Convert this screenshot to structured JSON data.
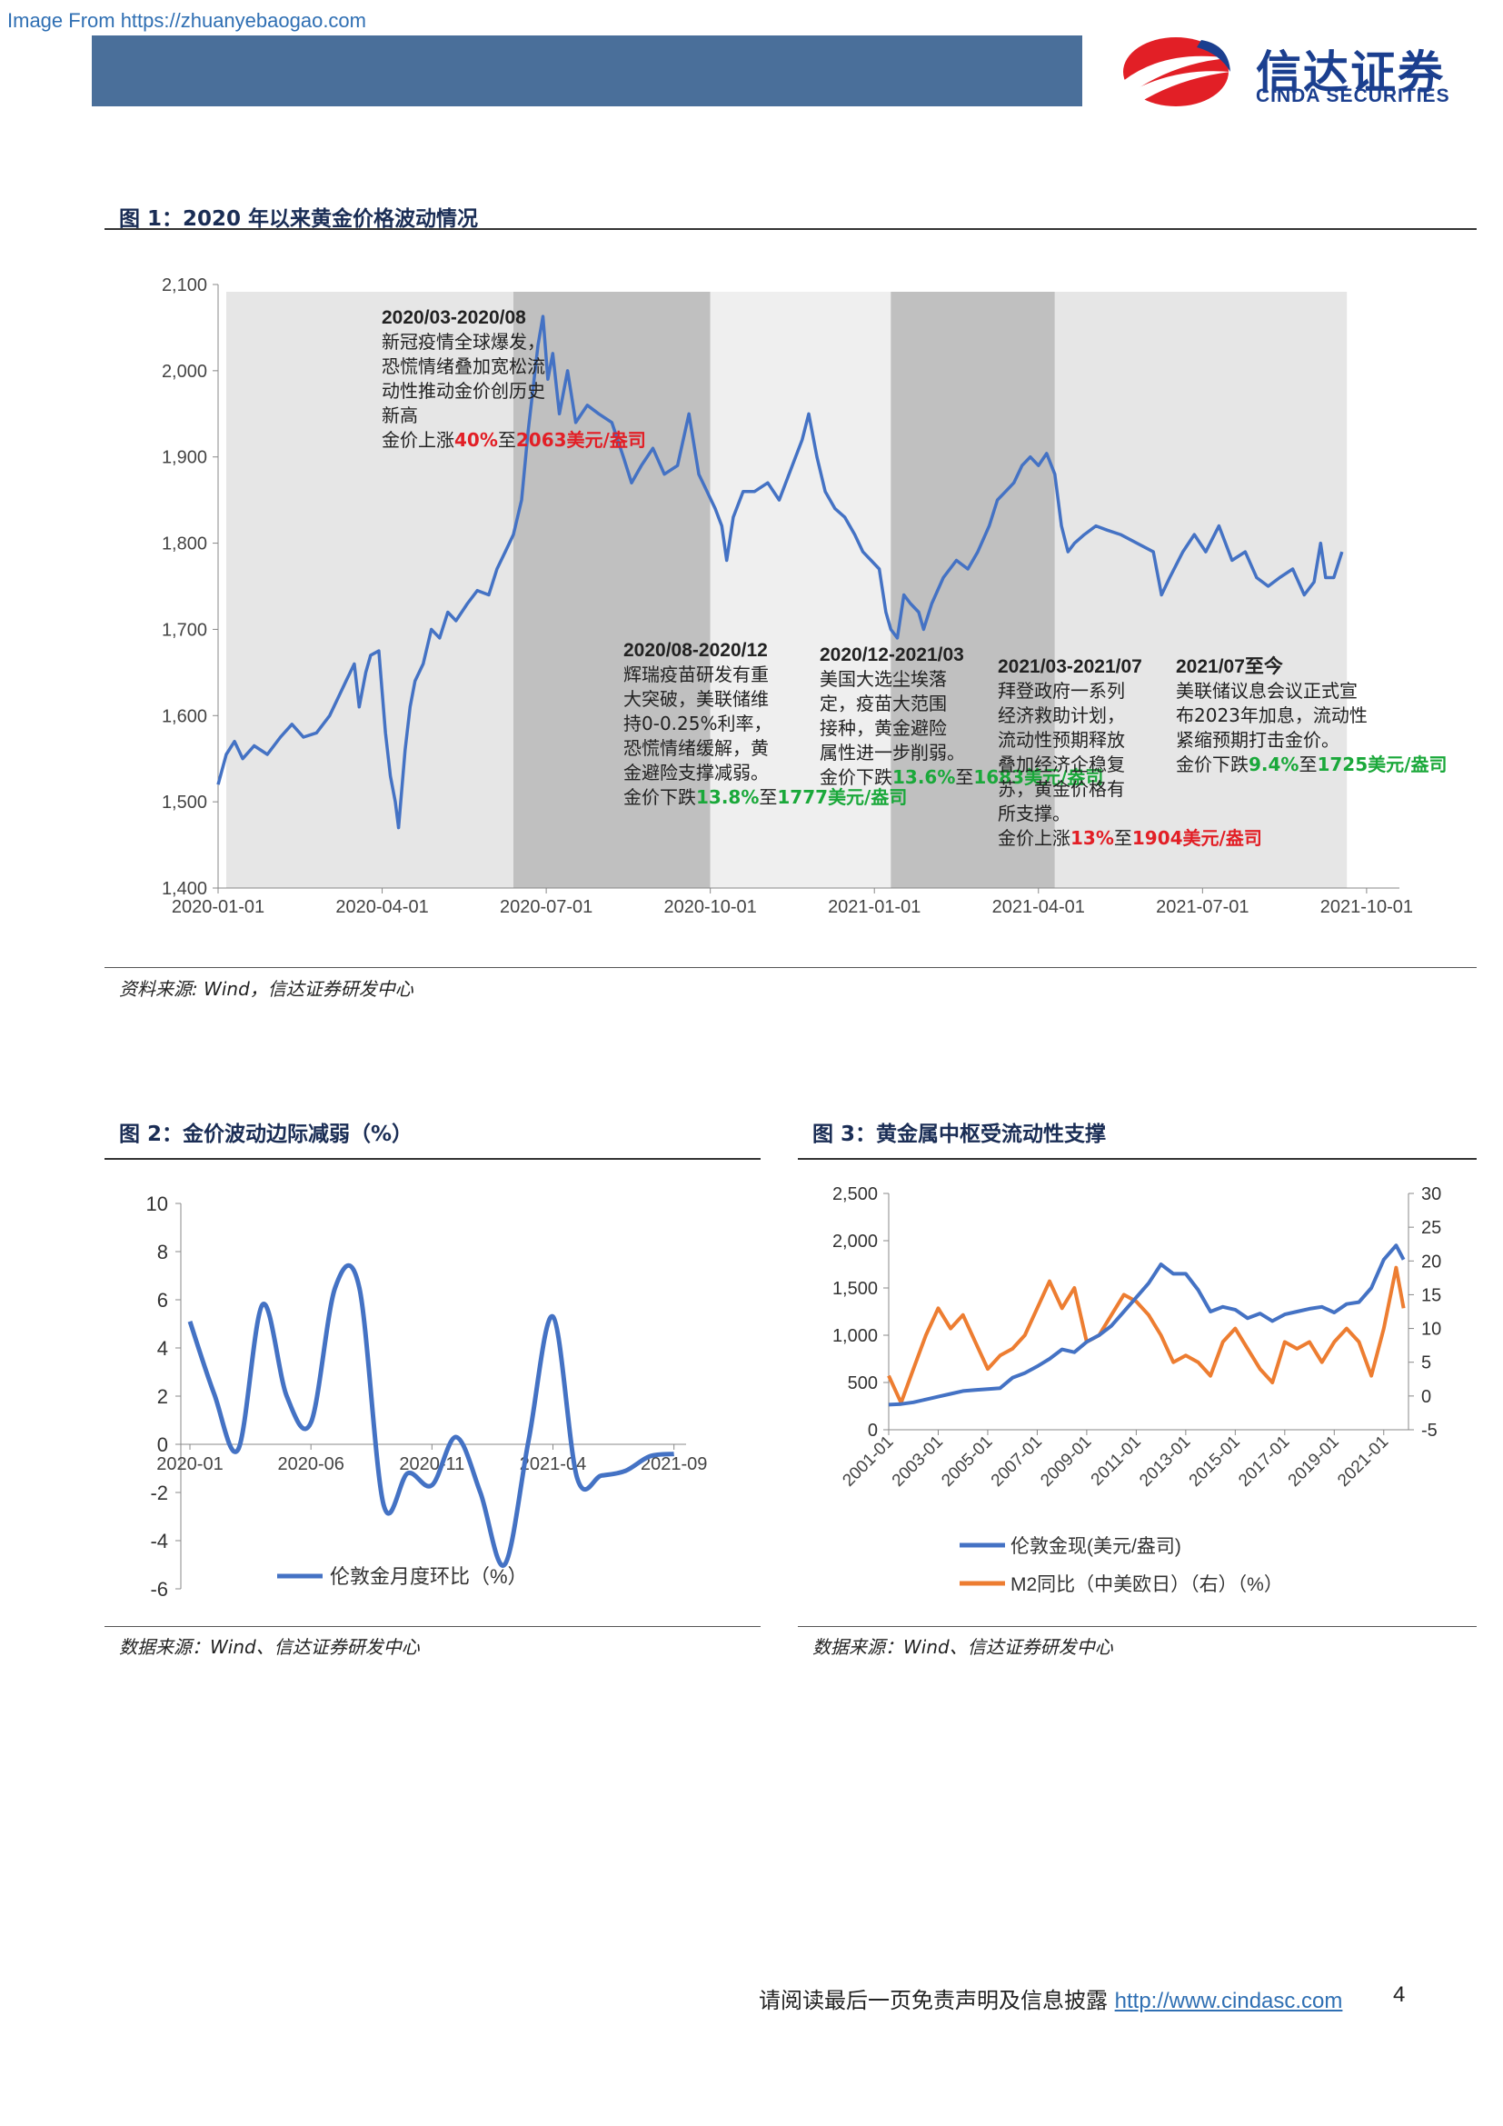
{
  "watermark": "Image From https://zhuanyebaogao.com",
  "logo": {
    "cn": "信达证券",
    "en": "CINDA SECURITIES",
    "colors": {
      "red": "#e21f26",
      "blue": "#1b3f8f"
    }
  },
  "fig1": {
    "title": "图 1：2020 年以来黄金价格波动情况",
    "source": "资料来源: Wind，信达证券研发中心",
    "annotations": [
      {
        "head": "2020/03-2020/08",
        "lines": [
          "新冠疫情全球爆发，",
          "恐慌情绪叠加宽松流",
          "动性推动金价创历史",
          "新高"
        ],
        "pre": "金价上涨",
        "pct": "40%",
        "mid": "至",
        "price": "2063",
        "unit": "美元/盎司"
      },
      {
        "head": "2020/08-2020/12",
        "lines": [
          "辉瑞疫苗研发有重",
          "大突破，美联储维",
          "持0-0.25%利率，",
          "恐慌情绪缓解，黄",
          "金避险支撑减弱。"
        ],
        "pre": "金价下跌",
        "pct": "13.8%",
        "mid": "至",
        "price": "1777",
        "unit": "美元/盎司"
      },
      {
        "head": "2020/12-2021/03",
        "lines": [
          "美国大选尘埃落",
          "定，疫苗大范围",
          "接种，黄金避险",
          "属性进一步削弱。"
        ],
        "pre": "金价下跌",
        "pct": "13.6%",
        "mid": "至",
        "price": "1683",
        "unit": "美元/盎司"
      },
      {
        "head": "2021/03-2021/07",
        "lines": [
          "拜登政府一系列",
          "经济救助计划，",
          "流动性预期释放",
          "叠加经济企稳复",
          "苏，黄金价格有",
          "所支撑。"
        ],
        "pre": "金价上涨",
        "pct": "13%",
        "mid": "至",
        "price": "1904",
        "unit": "美元/盎司"
      },
      {
        "head": "2021/07至今",
        "lines": [
          "美联储议息会议正式宣",
          "布2023年加息，流动性",
          "紧缩预期打击金价。"
        ],
        "pre": "金价下跌",
        "pct": "9.4%",
        "mid": "至",
        "price": "1725",
        "unit": "美元/盎司"
      }
    ]
  },
  "fig2": {
    "title": "图 2：金价波动边际减弱（%）",
    "source": "数据来源：Wind、信达证券研发中心"
  },
  "fig3": {
    "title": "图 3：黄金属中枢受流动性支撑",
    "source": "数据来源：Wind、信达证券研发中心"
  },
  "footer": {
    "text": "请阅读最后一页免责声明及信息披露",
    "link": "http://www.cindasc.com",
    "page": "4"
  },
  "chart_data": [
    {
      "id": "fig1",
      "type": "line",
      "ylim": [
        1400,
        2100
      ],
      "yticks": [
        "1,400",
        "1,500",
        "1,600",
        "1,700",
        "1,800",
        "1,900",
        "2,000",
        "2,100"
      ],
      "xticks": [
        "2020-01-01",
        "2020-04-01",
        "2020-07-01",
        "2020-10-01",
        "2021-01-01",
        "2021-04-01",
        "2021-07-01",
        "2021-10-01"
      ],
      "color": "#4472c4",
      "shaded_periods": [
        {
          "from": 0.05,
          "to": 1.8,
          "color": "#e6e6e6"
        },
        {
          "from": 1.8,
          "to": 3.0,
          "color": "#c0c0c0"
        },
        {
          "from": 3.0,
          "to": 4.1,
          "color": "#efefef"
        },
        {
          "from": 4.1,
          "to": 5.1,
          "color": "#c0c0c0"
        },
        {
          "from": 5.1,
          "to": 6.88,
          "color": "#e6e6e6"
        }
      ],
      "series": [
        {
          "values": [
            [
              0,
              1520
            ],
            [
              0.05,
              1555
            ],
            [
              0.1,
              1570
            ],
            [
              0.15,
              1550
            ],
            [
              0.22,
              1565
            ],
            [
              0.3,
              1555
            ],
            [
              0.38,
              1575
            ],
            [
              0.45,
              1590
            ],
            [
              0.52,
              1575
            ],
            [
              0.6,
              1580
            ],
            [
              0.68,
              1600
            ],
            [
              0.78,
              1640
            ],
            [
              0.83,
              1660
            ],
            [
              0.86,
              1610
            ],
            [
              0.9,
              1650
            ],
            [
              0.93,
              1670
            ],
            [
              0.98,
              1675
            ],
            [
              1.02,
              1580
            ],
            [
              1.05,
              1530
            ],
            [
              1.08,
              1500
            ],
            [
              1.1,
              1470
            ],
            [
              1.14,
              1560
            ],
            [
              1.17,
              1610
            ],
            [
              1.2,
              1640
            ],
            [
              1.25,
              1660
            ],
            [
              1.3,
              1700
            ],
            [
              1.35,
              1690
            ],
            [
              1.4,
              1720
            ],
            [
              1.45,
              1710
            ],
            [
              1.52,
              1730
            ],
            [
              1.58,
              1745
            ],
            [
              1.65,
              1740
            ],
            [
              1.7,
              1770
            ],
            [
              1.75,
              1790
            ],
            [
              1.8,
              1810
            ],
            [
              1.85,
              1850
            ],
            [
              1.89,
              1930
            ],
            [
              1.92,
              1980
            ],
            [
              1.95,
              2030
            ],
            [
              1.98,
              2063
            ],
            [
              2.01,
              1990
            ],
            [
              2.04,
              2020
            ],
            [
              2.08,
              1950
            ],
            [
              2.13,
              2000
            ],
            [
              2.18,
              1940
            ],
            [
              2.25,
              1960
            ],
            [
              2.32,
              1950
            ],
            [
              2.4,
              1940
            ],
            [
              2.47,
              1900
            ],
            [
              2.52,
              1870
            ],
            [
              2.58,
              1890
            ],
            [
              2.65,
              1910
            ],
            [
              2.72,
              1880
            ],
            [
              2.8,
              1890
            ],
            [
              2.87,
              1950
            ],
            [
              2.93,
              1880
            ],
            [
              2.98,
              1860
            ],
            [
              3.03,
              1840
            ],
            [
              3.07,
              1820
            ],
            [
              3.1,
              1780
            ],
            [
              3.14,
              1830
            ],
            [
              3.2,
              1860
            ],
            [
              3.27,
              1860
            ],
            [
              3.35,
              1870
            ],
            [
              3.42,
              1850
            ],
            [
              3.5,
              1890
            ],
            [
              3.56,
              1920
            ],
            [
              3.6,
              1950
            ],
            [
              3.65,
              1900
            ],
            [
              3.7,
              1860
            ],
            [
              3.76,
              1840
            ],
            [
              3.82,
              1830
            ],
            [
              3.88,
              1810
            ],
            [
              3.93,
              1790
            ],
            [
              3.98,
              1780
            ],
            [
              4.03,
              1770
            ],
            [
              4.07,
              1720
            ],
            [
              4.1,
              1700
            ],
            [
              4.14,
              1690
            ],
            [
              4.18,
              1740
            ],
            [
              4.22,
              1730
            ],
            [
              4.27,
              1720
            ],
            [
              4.3,
              1700
            ],
            [
              4.35,
              1730
            ],
            [
              4.42,
              1760
            ],
            [
              4.5,
              1780
            ],
            [
              4.57,
              1770
            ],
            [
              4.63,
              1790
            ],
            [
              4.7,
              1820
            ],
            [
              4.75,
              1850
            ],
            [
              4.8,
              1860
            ],
            [
              4.85,
              1870
            ],
            [
              4.9,
              1890
            ],
            [
              4.95,
              1900
            ],
            [
              5.0,
              1890
            ],
            [
              5.05,
              1904
            ],
            [
              5.1,
              1880
            ],
            [
              5.14,
              1820
            ],
            [
              5.18,
              1790
            ],
            [
              5.22,
              1800
            ],
            [
              5.28,
              1810
            ],
            [
              5.35,
              1820
            ],
            [
              5.42,
              1815
            ],
            [
              5.5,
              1810
            ],
            [
              5.6,
              1800
            ],
            [
              5.7,
              1790
            ],
            [
              5.75,
              1740
            ],
            [
              5.8,
              1760
            ],
            [
              5.88,
              1790
            ],
            [
              5.95,
              1810
            ],
            [
              6.02,
              1790
            ],
            [
              6.1,
              1820
            ],
            [
              6.18,
              1780
            ],
            [
              6.26,
              1790
            ],
            [
              6.33,
              1760
            ],
            [
              6.4,
              1750
            ],
            [
              6.47,
              1760
            ],
            [
              6.55,
              1770
            ],
            [
              6.62,
              1740
            ],
            [
              6.68,
              1755
            ],
            [
              6.72,
              1800
            ],
            [
              6.75,
              1760
            ],
            [
              6.8,
              1760
            ],
            [
              6.85,
              1790
            ]
          ]
        }
      ]
    },
    {
      "id": "fig2",
      "type": "line",
      "ylim": [
        -6,
        10
      ],
      "yticks": [
        "-6",
        "-4",
        "-2",
        "0",
        "2",
        "4",
        "6",
        "8",
        "10"
      ],
      "xticks": [
        "2020-01",
        "2020-06",
        "2020-11",
        "2021-04",
        "2021-09"
      ],
      "series": [
        {
          "name": "伦敦金月度环比（%）",
          "color": "#4472c4",
          "x": [
            0,
            1,
            2,
            3,
            4,
            5,
            6,
            7,
            8,
            9,
            10,
            11,
            12,
            13,
            14,
            15,
            16,
            17,
            18,
            19,
            20
          ],
          "values": [
            5.1,
            2.1,
            -0.2,
            5.8,
            2.0,
            0.9,
            6.5,
            6.5,
            -2.5,
            -1.2,
            -1.7,
            0.3,
            -2.0,
            -5.0,
            0.2,
            5.3,
            -1.4,
            -1.3,
            -1.1,
            -0.5,
            -0.4
          ]
        }
      ]
    },
    {
      "id": "fig3",
      "type": "line",
      "ylim": [
        0,
        2500
      ],
      "yticks": [
        "0",
        "500",
        "1,000",
        "1,500",
        "2,000",
        "2,500"
      ],
      "y2lim": [
        -5,
        30
      ],
      "y2ticks": [
        "-5",
        "0",
        "5",
        "10",
        "15",
        "20",
        "25",
        "30"
      ],
      "xticks": [
        "2001-01",
        "2003-01",
        "2005-01",
        "2007-01",
        "2009-01",
        "2011-01",
        "2013-01",
        "2015-01",
        "2017-01",
        "2019-01",
        "2021-01"
      ],
      "series": [
        {
          "name": "伦敦金现(美元/盎司)",
          "color": "#4472c4",
          "axis": "left",
          "x": [
            0,
            0.5,
            1,
            1.5,
            2,
            2.5,
            3,
            3.5,
            4,
            4.5,
            5,
            5.5,
            6,
            6.5,
            7,
            7.5,
            8,
            8.5,
            9,
            9.5,
            10,
            10.5,
            11,
            11.5,
            12,
            12.5,
            13,
            13.5,
            14,
            14.5,
            15,
            15.5,
            16,
            16.5,
            17,
            17.5,
            18,
            18.5,
            19,
            19.5,
            20,
            20.5,
            20.8
          ],
          "values": [
            265,
            272,
            290,
            320,
            350,
            380,
            410,
            420,
            430,
            440,
            550,
            600,
            670,
            750,
            850,
            820,
            930,
            1000,
            1100,
            1250,
            1400,
            1550,
            1750,
            1650,
            1650,
            1480,
            1250,
            1300,
            1270,
            1180,
            1230,
            1150,
            1220,
            1250,
            1280,
            1300,
            1240,
            1330,
            1350,
            1500,
            1800,
            1950,
            1800
          ]
        },
        {
          "name": "M2同比（中美欧日）（右）（%）",
          "color": "#ed7d31",
          "axis": "right",
          "x": [
            0,
            0.5,
            1,
            1.5,
            2,
            2.5,
            3,
            3.5,
            4,
            4.5,
            5,
            5.5,
            6,
            6.5,
            7,
            7.5,
            8,
            8.5,
            9,
            9.5,
            10,
            10.5,
            11,
            11.5,
            12,
            12.5,
            13,
            13.5,
            14,
            14.5,
            15,
            15.5,
            16,
            16.5,
            17,
            17.5,
            18,
            18.5,
            19,
            19.5,
            20,
            20.5,
            20.8
          ],
          "values": [
            3,
            -1,
            4,
            9,
            13,
            10,
            12,
            8,
            4,
            6,
            7,
            9,
            13,
            17,
            13,
            16,
            8,
            9,
            12,
            15,
            14,
            12,
            9,
            5,
            6,
            5,
            3,
            8,
            10,
            7,
            4,
            2,
            8,
            7,
            8,
            5,
            8,
            10,
            8,
            3,
            10,
            19,
            13
          ]
        }
      ]
    }
  ]
}
